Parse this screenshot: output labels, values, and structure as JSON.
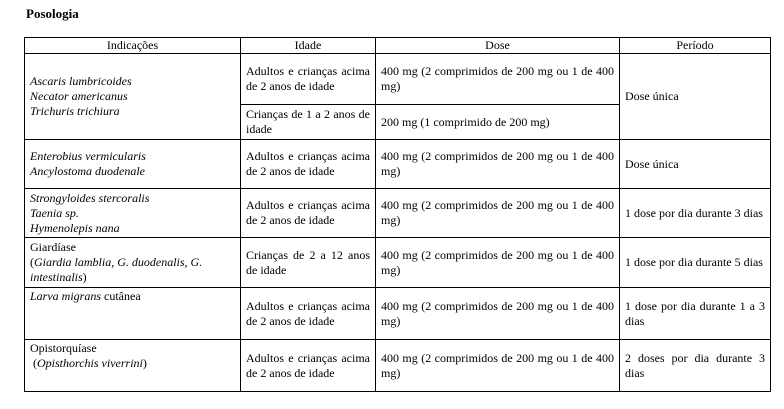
{
  "heading": "Posologia",
  "headers": [
    "Indicações",
    "Idade",
    "Dose",
    "Período"
  ],
  "rows": {
    "r1": {
      "indications": [
        "Ascaris lumbricoides",
        "Necator americanus",
        "Trichuris trichiura"
      ],
      "age_a": "Adultos e crianças acima de 2 anos de idade",
      "dose_a": "400 mg (2 comprimidos de 200 mg ou 1 de 400 mg)",
      "age_b": "Crianças de 1 a 2 anos de idade",
      "dose_b": "200 mg (1 comprimido de 200 mg)",
      "period": "Dose única"
    },
    "r2": {
      "indications": [
        "Enterobius vermicularis",
        "Ancylostoma duodenale"
      ],
      "age": "Adultos e crianças acima de 2 anos de idade",
      "dose": "400 mg (2 comprimidos de 200 mg ou 1 de 400 mg)",
      "period": "Dose única"
    },
    "r3": {
      "indications": [
        "Strongyloides stercoralis",
        "Taenia sp.",
        "Hymenolepis nana"
      ],
      "age": "Adultos e crianças acima de 2 anos de idade",
      "dose": "400 mg (2 comprimidos de 200 mg ou 1 de 400 mg)",
      "period": "1 dose por dia durante 3 dias"
    },
    "r4": {
      "title": "Giardíase",
      "paren_open": "(",
      "species": "Giardia lamblia, G. duodenalis, G. intestinalis",
      "paren_close": ")",
      "age": "Crianças de 2 a 12 anos de idade",
      "dose": "400 mg (2 comprimidos de 200 mg ou 1 de 400 mg)",
      "period": "1 dose por dia durante 5 dias"
    },
    "r5": {
      "indication_italic": "Larva migrans",
      "indication_rest": " cutânea",
      "age": "Adultos e crianças acima de 2 anos de idade",
      "dose": "400 mg (2 comprimidos de 200 mg ou 1 de 400 mg)",
      "period": "1 dose por dia durante 1 a 3 dias"
    },
    "r6": {
      "title": "Opistorquíase",
      "paren_open": " (",
      "species": "Opisthorchis viverrini",
      "paren_close": ")",
      "age": "Adultos e crianças acima de 2 anos de idade",
      "dose": "400 mg (2 comprimidos de 200 mg ou 1 de 400 mg)",
      "period": "2 doses por dia durante 3 dias"
    }
  }
}
